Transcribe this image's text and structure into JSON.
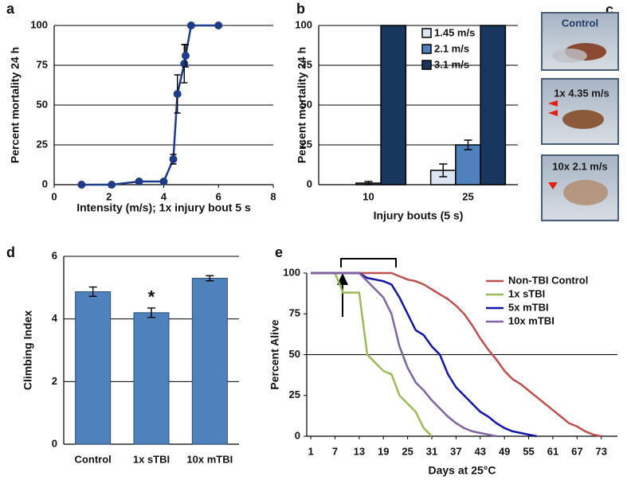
{
  "chart_data": [
    {
      "panel": "a",
      "type": "line",
      "ylabel": "Percent mortality 24 h",
      "xlabel": "Intensity (m/s); 1x injury bout 5 s",
      "x": [
        1,
        2.1,
        3.1,
        4,
        4.35,
        4.5,
        4.75,
        4.8,
        5,
        6
      ],
      "values": [
        0,
        0,
        2,
        2,
        16,
        57,
        76,
        81,
        100,
        100
      ],
      "errors": [
        0,
        0,
        1,
        1,
        3,
        12,
        12,
        7,
        0,
        0
      ],
      "color": "#1f3c88",
      "xlim": [
        0,
        8
      ],
      "xticks": [
        0,
        2,
        4,
        6,
        8
      ],
      "ylim": [
        0,
        100
      ],
      "yticks": [
        0,
        25,
        50,
        75,
        100
      ],
      "grid": true
    },
    {
      "panel": "b",
      "type": "bar",
      "ylabel": "Percent mortality 24 h",
      "xlabel": "Injury bouts (5 s)",
      "categories": [
        "10",
        "25"
      ],
      "series": [
        {
          "name": "1.45 m/s",
          "color": "#dce6f2",
          "values": [
            0,
            9
          ],
          "errors": [
            0,
            4
          ]
        },
        {
          "name": "2.1 m/s",
          "color": "#4f81bd",
          "values": [
            1,
            25
          ],
          "errors": [
            1,
            3
          ]
        },
        {
          "name": "3.1 m/s",
          "color": "#17375e",
          "values": [
            100,
            100
          ],
          "errors": [
            0,
            0
          ]
        }
      ],
      "ylim": [
        0,
        100
      ],
      "yticks": [
        0,
        25,
        50,
        75,
        100
      ],
      "grid": true,
      "legend": "upper center"
    },
    {
      "panel": "d",
      "type": "bar",
      "ylabel": "Climbing Index",
      "categories": [
        "Control",
        "1x sTBI",
        "10x mTBI"
      ],
      "values": [
        4.87,
        4.2,
        5.3
      ],
      "errors": [
        0.15,
        0.15,
        0.08
      ],
      "color": "#4f81bd",
      "annotations": [
        {
          "text": "*",
          "category": "1x sTBI"
        }
      ],
      "ylim": [
        0,
        6
      ],
      "yticks": [
        0,
        2,
        4,
        6
      ],
      "grid": true
    },
    {
      "panel": "e",
      "type": "line",
      "ylabel": "Percent Alive",
      "xlabel": "Days at 25°C",
      "x": [
        1,
        7,
        9,
        11,
        13,
        15,
        17,
        19,
        21,
        23,
        25,
        27,
        29,
        31,
        33,
        35,
        37,
        39,
        41,
        43,
        45,
        47,
        49,
        51,
        53,
        55,
        57,
        59,
        61,
        63,
        65,
        67,
        69,
        71,
        73,
        75
      ],
      "series": [
        {
          "name": "Non-TBI Control",
          "color": "#c0504d",
          "values": [
            100,
            100,
            100,
            100,
            100,
            100,
            100,
            100,
            100,
            98,
            96,
            95,
            93,
            90,
            87,
            84,
            80,
            75,
            68,
            60,
            53,
            47,
            40,
            35,
            32,
            28,
            24,
            20,
            16,
            12,
            8,
            6,
            3,
            1,
            0,
            null
          ]
        },
        {
          "name": "1x sTBI",
          "color": "#9bbb59",
          "values": [
            100,
            100,
            88,
            88,
            88,
            50,
            45,
            40,
            38,
            25,
            20,
            15,
            5,
            0,
            null,
            null,
            null,
            null,
            null,
            null,
            null,
            null,
            null,
            null,
            null,
            null,
            null,
            null,
            null,
            null,
            null,
            null,
            null,
            null,
            null,
            null
          ]
        },
        {
          "name": "5x mTBI",
          "color": "#1414a8",
          "values": [
            100,
            100,
            100,
            100,
            100,
            97,
            96,
            95,
            93,
            85,
            75,
            65,
            62,
            55,
            50,
            38,
            30,
            25,
            20,
            15,
            12,
            8,
            5,
            3,
            2,
            1,
            0,
            null,
            null,
            null,
            null,
            null,
            null,
            null,
            null,
            null
          ]
        },
        {
          "name": "10x mTBI",
          "color": "#8064a2",
          "values": [
            100,
            100,
            100,
            100,
            100,
            95,
            90,
            85,
            75,
            55,
            42,
            33,
            28,
            22,
            17,
            12,
            8,
            5,
            3,
            2,
            1,
            0,
            null,
            null,
            null,
            null,
            null,
            null,
            null,
            null,
            null,
            null,
            null,
            null,
            null,
            null
          ]
        }
      ],
      "xlim": [
        0,
        77
      ],
      "xticks": [
        1,
        7,
        13,
        19,
        25,
        31,
        37,
        43,
        49,
        55,
        61,
        67,
        73
      ],
      "ylim": [
        0,
        100
      ],
      "yticks": [
        0,
        25,
        50,
        75,
        100
      ],
      "grid": false,
      "hline": 50,
      "legend": "upper right"
    }
  ],
  "images": {
    "panel": "c",
    "captions": [
      "Control",
      "1x 4.35 m/s",
      "10x 2.1 m/s"
    ]
  }
}
